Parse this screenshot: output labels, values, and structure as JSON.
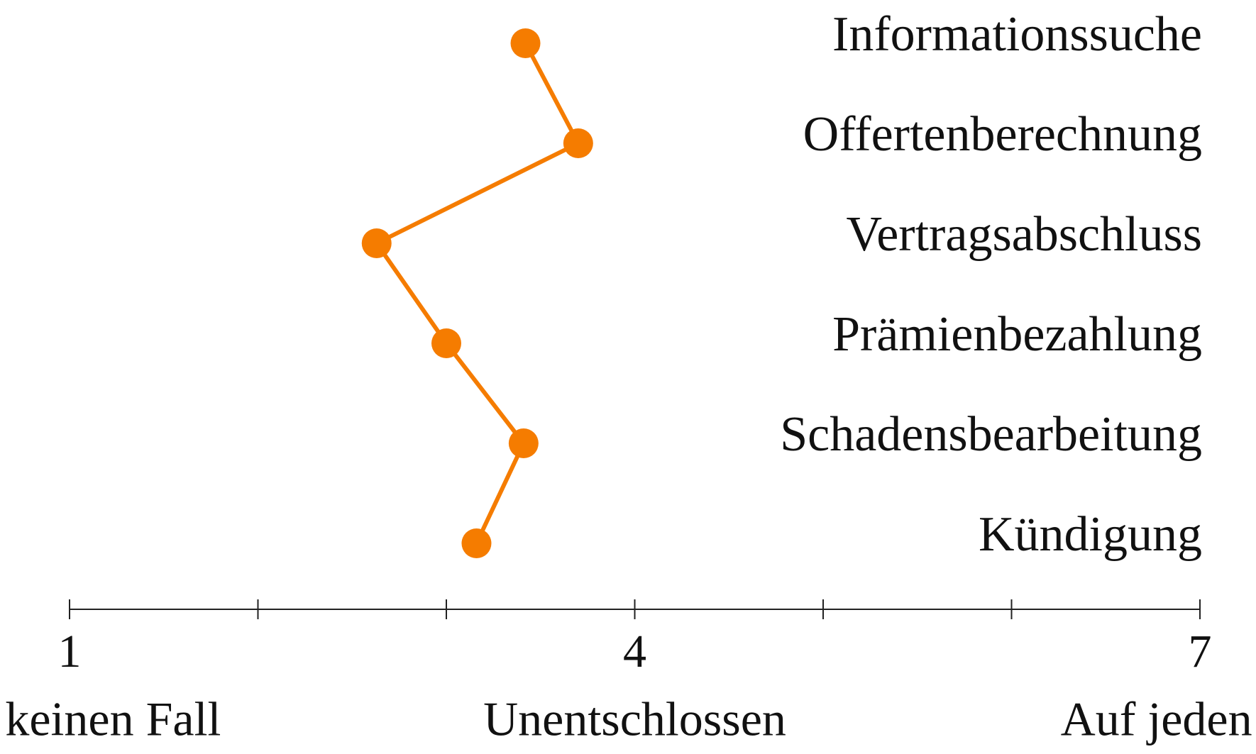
{
  "chart_data": {
    "type": "dot-line",
    "categories": [
      "Informationssuche",
      "Offertenberechnung",
      "Vertragsabschluss",
      "Prämienbezahlung",
      "Schadensbearbeitung",
      "Kündigung"
    ],
    "values": [
      3.42,
      3.7,
      2.63,
      3.0,
      3.41,
      3.16
    ],
    "color": "#f57c00",
    "xlim": [
      1,
      7
    ],
    "xticks": [
      1,
      4,
      7
    ],
    "xminor_ticks": [
      2,
      3,
      5,
      6
    ],
    "scale_labels": [
      "Auf keinen Fall",
      "Unentschlossen",
      "Auf jeden Fall"
    ]
  }
}
